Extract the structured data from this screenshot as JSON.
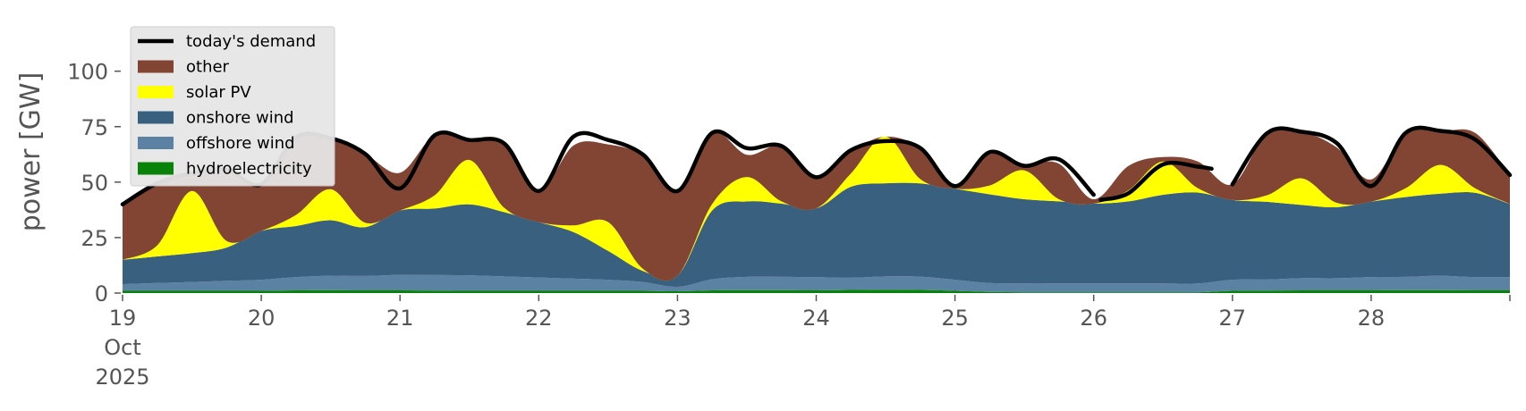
{
  "chart_data": {
    "type": "area",
    "title": "",
    "xlabel": "",
    "ylabel": "power [GW]",
    "ylim": [
      0,
      120
    ],
    "yticks": [
      0,
      25,
      50,
      75,
      100
    ],
    "xlim": [
      0,
      10
    ],
    "xticks": [
      {
        "x": 0,
        "lines": [
          "19",
          "Oct",
          "2025"
        ]
      },
      {
        "x": 1,
        "lines": [
          "20"
        ]
      },
      {
        "x": 2,
        "lines": [
          "21"
        ]
      },
      {
        "x": 3,
        "lines": [
          "22"
        ]
      },
      {
        "x": 4,
        "lines": [
          "23"
        ]
      },
      {
        "x": 5,
        "lines": [
          "24"
        ]
      },
      {
        "x": 6,
        "lines": [
          "25"
        ]
      },
      {
        "x": 7,
        "lines": [
          "26"
        ]
      },
      {
        "x": 8,
        "lines": [
          "27"
        ]
      },
      {
        "x": 9,
        "lines": [
          "28"
        ]
      }
    ],
    "grid": false,
    "legend_position": "upper-left",
    "legend": [
      {
        "label": "today's demand",
        "kind": "line",
        "color": "#000000"
      },
      {
        "label": "other",
        "kind": "patch",
        "color": "#824433"
      },
      {
        "label": "solar PV",
        "kind": "patch",
        "color": "#ffff00"
      },
      {
        "label": "onshore wind",
        "kind": "patch",
        "color": "#3a6080"
      },
      {
        "label": "offshore wind",
        "kind": "patch",
        "color": "#5b82a3"
      },
      {
        "label": "hydroelectricity",
        "kind": "patch",
        "color": "#088208"
      }
    ],
    "stack_order": [
      "hydroelectricity",
      "offshore wind",
      "onshore wind",
      "solar PV",
      "other"
    ],
    "x": [
      0,
      0.25,
      0.5,
      0.75,
      1,
      1.25,
      1.5,
      1.75,
      2,
      2.25,
      2.5,
      2.75,
      3,
      3.25,
      3.5,
      3.75,
      4,
      4.25,
      4.5,
      4.75,
      5,
      5.25,
      5.5,
      5.75,
      6,
      6.25,
      6.5,
      6.75,
      7,
      7.25,
      7.5,
      7.75,
      8,
      8.25,
      8.5,
      8.75,
      9,
      9.25,
      9.5,
      9.75,
      10
    ],
    "series": [
      {
        "name": "hydroelectricity",
        "color": "#088208",
        "values": [
          1,
          1,
          1,
          1,
          1,
          1.2,
          1.3,
          1.2,
          1.2,
          1.1,
          1,
          1,
          1,
          1,
          1,
          1,
          0.8,
          1.2,
          1.3,
          1.3,
          1.2,
          1.4,
          1.5,
          1.4,
          1,
          0.5,
          0.3,
          0.3,
          0.3,
          0.3,
          0.3,
          0.3,
          1,
          1.1,
          1.2,
          1.2,
          1.2,
          1.3,
          1.3,
          1.2,
          1.2
        ]
      },
      {
        "name": "offshore wind",
        "color": "#5b82a3",
        "values": [
          3,
          3.5,
          4,
          4.5,
          5,
          6,
          6.5,
          6.5,
          7,
          7,
          7,
          6.5,
          6,
          5.5,
          5,
          4,
          2,
          5,
          6,
          6,
          6,
          5.5,
          6,
          6,
          5,
          4,
          4,
          4,
          4,
          4,
          4,
          4,
          5,
          5,
          5.5,
          5.5,
          6,
          6,
          6.5,
          6,
          6
        ]
      },
      {
        "name": "onshore wind",
        "color": "#3a6080",
        "values": [
          11,
          12,
          13,
          15,
          22,
          23,
          25,
          22,
          29,
          30,
          32,
          29,
          25,
          21,
          13,
          5,
          5,
          31,
          34,
          33,
          31,
          41,
          42,
          42,
          41,
          40,
          38,
          37,
          36,
          37,
          40,
          41,
          36,
          35,
          33,
          32,
          34,
          36,
          37,
          38,
          33
        ]
      },
      {
        "name": "solar PV",
        "color": "#ffff00",
        "values": [
          0,
          5,
          28,
          3,
          0,
          5,
          14,
          2,
          0,
          6,
          20,
          2,
          0,
          3,
          13,
          1,
          0,
          3,
          11,
          1,
          0,
          6,
          21,
          2,
          0,
          4,
          13,
          1,
          0,
          5,
          15,
          2,
          0,
          3,
          12,
          2,
          0,
          4,
          13,
          2,
          0
        ]
      },
      {
        "name": "other",
        "color": "#824433",
        "values": [
          25,
          28,
          8,
          32,
          21,
          35,
          23,
          31,
          17,
          27,
          9,
          28,
          14,
          36,
          35,
          51,
          38,
          32,
          10,
          25,
          14,
          10,
          0,
          14,
          2,
          14,
          3,
          16,
          2,
          11,
          2,
          12,
          7,
          28,
          21,
          25,
          10,
          25,
          15,
          25,
          13
        ]
      }
    ],
    "demand": {
      "name": "today's demand",
      "color": "#000000",
      "segments": [
        {
          "x": [
            0,
            0.25,
            0.5,
            0.75,
            1,
            1.25,
            1.5,
            1.75,
            2,
            2.25,
            2.5,
            2.75,
            3,
            3.25,
            3.5,
            3.75,
            4,
            4.25,
            4.5,
            4.75,
            5,
            5.25,
            5.5,
            5.75,
            6,
            6.25,
            6.5,
            6.75,
            7
          ],
          "y": [
            40,
            49.5,
            54,
            55.5,
            49,
            70.2,
            69.8,
            62.7,
            47.2,
            71.1,
            69,
            67.5,
            46,
            70.5,
            69,
            62.5,
            46,
            72.2,
            65.3,
            66.3,
            52.2,
            64.4,
            68.5,
            65.4,
            48.2,
            63.5,
            57.3,
            60.3,
            44.3
          ]
        },
        {
          "x": [
            7.05,
            7.25,
            7.5,
            7.75,
            7.85
          ],
          "y": [
            42,
            45,
            58,
            57,
            56
          ]
        },
        {
          "x": [
            8,
            8.25,
            8.5,
            8.75,
            9,
            9.25,
            9.5,
            9.75,
            10
          ],
          "y": [
            49,
            72.1,
            72.7,
            67.7,
            48.2,
            72.3,
            73.1,
            69.2,
            53.2
          ]
        }
      ]
    }
  }
}
